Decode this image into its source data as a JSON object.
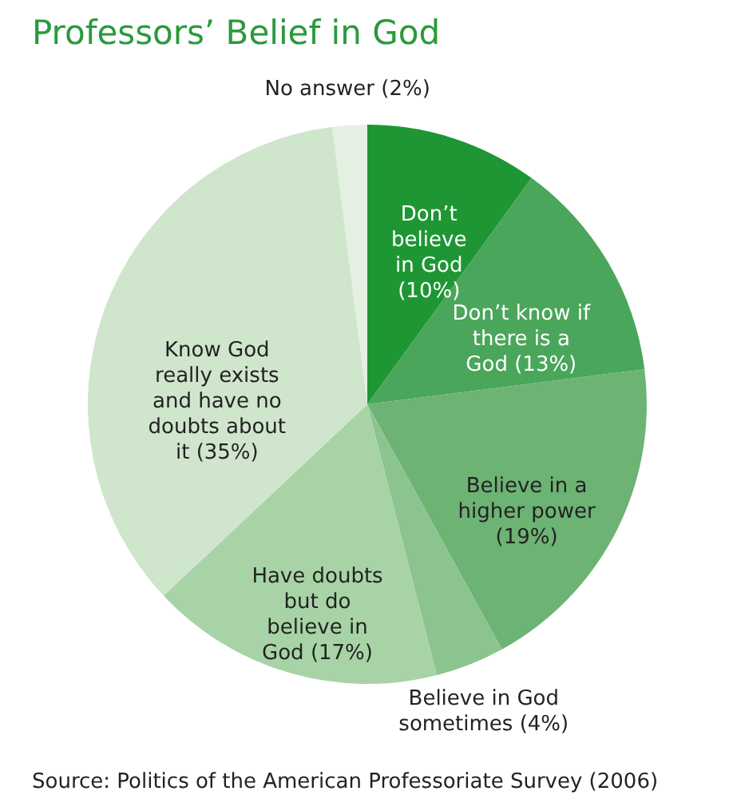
{
  "chart_data": {
    "type": "pie",
    "title": "Professors’ Belief in God",
    "categories": [
      "Don’t believe in God (10%)",
      "Don’t know if there is a God (13%)",
      "Believe in a higher power (19%)",
      "Believe in God sometimes (4%)",
      "Have doubts but do believe in God (17%)",
      "Know God really exists and have no doubts about it (35%)",
      "No answer (2%)"
    ],
    "values": [
      10,
      13,
      19,
      4,
      17,
      35,
      2
    ],
    "colors": [
      "#1e9634",
      "#4aa65a",
      "#6db374",
      "#8cc48f",
      "#a8d3a6",
      "#cfe6cc",
      "#e4f1e2"
    ],
    "annotations": [
      "Source: Politics of the American Professoriate Survey (2006)"
    ]
  }
}
